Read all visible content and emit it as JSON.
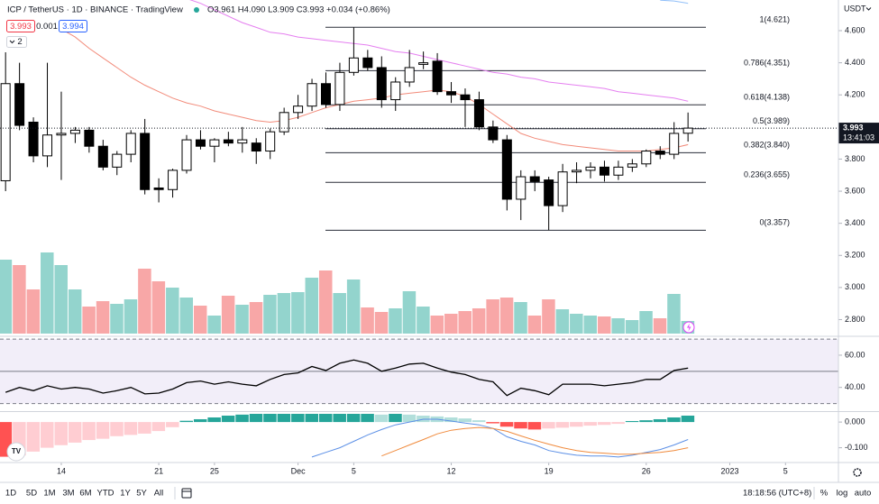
{
  "header": {
    "symbol": "ICP / TetherUS · 1D · BINANCE · TradingView",
    "ohlc": "O3.961 H4.090 L3.909 C3.993 +0.034 (+0.86%)",
    "bid": "3.993",
    "spread": "0.001",
    "ask": "3.994",
    "indicators_count": "2",
    "currency": "USDT"
  },
  "toolbar": {
    "ranges": [
      "1D",
      "5D",
      "1M",
      "3M",
      "6M",
      "YTD",
      "1Y",
      "5Y",
      "All"
    ],
    "clock": "18:18:56 (UTC+8)",
    "percent": "%",
    "log": "log",
    "auto": "auto"
  },
  "chart_data": [
    {
      "type": "candlestick",
      "up_color": "#ffffff",
      "down_color": "#000000",
      "open": [
        3.665,
        4.27,
        4.03,
        3.82,
        3.95,
        3.96,
        3.98,
        3.88,
        3.75,
        3.83,
        3.96,
        3.62,
        3.61,
        3.73,
        3.92,
        3.88,
        3.92,
        3.9,
        3.9,
        3.85,
        3.97,
        4.09,
        4.13,
        4.27,
        4.14,
        4.34,
        4.43,
        4.37,
        4.17,
        4.28,
        4.39,
        4.41,
        4.22,
        4.2,
        4.17,
        4.0,
        3.92,
        3.55,
        3.69,
        3.67,
        3.51,
        3.72,
        3.73,
        3.75,
        3.7,
        3.75,
        3.77,
        3.85,
        3.83,
        3.961
      ],
      "high": [
        4.465,
        4.4,
        4.06,
        4.4,
        4.22,
        4.0,
        4.0,
        3.92,
        3.85,
        3.98,
        4.05,
        3.68,
        3.74,
        3.95,
        3.98,
        3.93,
        3.97,
        4.0,
        3.93,
        3.99,
        4.12,
        4.2,
        4.3,
        4.34,
        4.4,
        4.62,
        4.48,
        4.44,
        4.31,
        4.48,
        4.47,
        4.46,
        4.28,
        4.24,
        4.22,
        4.04,
        3.95,
        3.73,
        3.73,
        3.69,
        3.77,
        3.78,
        3.78,
        3.79,
        3.79,
        3.8,
        3.86,
        3.88,
        4.03,
        4.09
      ],
      "low": [
        3.6,
        3.98,
        3.78,
        3.75,
        3.67,
        3.9,
        3.84,
        3.73,
        3.7,
        3.78,
        3.58,
        3.53,
        3.56,
        3.71,
        3.86,
        3.78,
        3.88,
        3.84,
        3.77,
        3.8,
        3.95,
        4.05,
        4.1,
        4.12,
        4.1,
        4.32,
        4.35,
        4.12,
        4.1,
        4.25,
        4.36,
        4.2,
        4.15,
        4.0,
        3.98,
        3.9,
        3.48,
        3.42,
        3.6,
        3.357,
        3.47,
        3.65,
        3.68,
        3.66,
        3.67,
        3.72,
        3.75,
        3.8,
        3.8,
        3.909
      ],
      "close": [
        4.27,
        4.01,
        3.82,
        3.95,
        3.96,
        3.98,
        3.88,
        3.75,
        3.83,
        3.96,
        3.61,
        3.61,
        3.73,
        3.92,
        3.88,
        3.92,
        3.9,
        3.92,
        3.85,
        3.97,
        4.09,
        4.13,
        4.27,
        4.14,
        4.34,
        4.43,
        4.37,
        4.17,
        4.28,
        4.37,
        4.4,
        4.22,
        4.2,
        4.17,
        4.0,
        3.92,
        3.55,
        3.69,
        3.66,
        3.51,
        3.72,
        3.73,
        3.75,
        3.7,
        3.75,
        3.77,
        3.85,
        3.83,
        3.96,
        3.993
      ],
      "lines": [
        {
          "color": "#e57ff0",
          "values": [
            null,
            null,
            null,
            null,
            null,
            null,
            null,
            null,
            null,
            null,
            null,
            null,
            null,
            4.8,
            4.77,
            4.73,
            4.69,
            4.65,
            4.62,
            4.59,
            4.58,
            4.56,
            4.55,
            4.54,
            4.53,
            4.52,
            4.51,
            4.49,
            4.47,
            4.46,
            4.44,
            4.42,
            4.4,
            4.38,
            4.36,
            4.34,
            4.33,
            4.31,
            4.3,
            4.28,
            4.27,
            4.26,
            4.25,
            4.24,
            4.22,
            4.21,
            4.2,
            4.19,
            4.18,
            4.16
          ]
        },
        {
          "color": "#f28b7a",
          "values": [
            null,
            null,
            null,
            null,
            4.61,
            4.56,
            4.49,
            4.43,
            4.37,
            4.31,
            4.26,
            4.22,
            4.18,
            4.15,
            4.13,
            4.1,
            4.08,
            4.06,
            4.04,
            4.03,
            4.04,
            4.06,
            4.09,
            4.12,
            4.14,
            4.16,
            4.17,
            4.18,
            4.2,
            4.21,
            4.22,
            4.23,
            4.22,
            4.19,
            4.14,
            4.08,
            4.02,
            3.96,
            3.93,
            3.91,
            3.89,
            3.88,
            3.87,
            3.86,
            3.85,
            3.85,
            3.85,
            3.86,
            3.87,
            3.89
          ]
        },
        {
          "color": "#90bff9",
          "values": [
            null,
            null,
            null,
            null,
            null,
            null,
            null,
            null,
            null,
            null,
            null,
            null,
            null,
            null,
            null,
            null,
            null,
            null,
            null,
            null,
            null,
            null,
            null,
            null,
            null,
            null,
            null,
            null,
            null,
            null,
            null,
            null,
            null,
            null,
            null,
            null,
            null,
            null,
            null,
            null,
            null,
            null,
            null,
            null,
            null,
            null,
            null,
            4.79,
            4.785,
            4.77
          ]
        }
      ],
      "fib": [
        {
          "value": 4.621,
          "label": "1(4.621)"
        },
        {
          "value": 4.351,
          "label": "0.786(4.351)"
        },
        {
          "value": 4.138,
          "label": "0.618(4.138)"
        },
        {
          "value": 3.989,
          "label": "0.5(3.989)"
        },
        {
          "value": 3.84,
          "label": "0.382(3.840)"
        },
        {
          "value": 3.655,
          "label": "0.236(3.655)"
        },
        {
          "value": 3.357,
          "label": "0(3.357)"
        }
      ],
      "last_price": 3.993,
      "countdown": "13:41:03",
      "xlim": [
        -0.4,
        59.8
      ],
      "xticks": [
        {
          "value": 4,
          "label": "14"
        },
        {
          "value": 11,
          "label": "21"
        },
        {
          "value": 15,
          "label": "25"
        },
        {
          "value": 21,
          "label": "Dec"
        },
        {
          "value": 25,
          "label": "5"
        },
        {
          "value": 32,
          "label": "12"
        },
        {
          "value": 39,
          "label": "19"
        },
        {
          "value": 46,
          "label": "26"
        },
        {
          "value": 52,
          "label": "2023"
        },
        {
          "value": 56,
          "label": "5"
        }
      ],
      "ylim": [
        2.696,
        4.791
      ],
      "yticks": [
        {
          "value": 2.8,
          "label": "2.800"
        },
        {
          "value": 3.0,
          "label": "3.000"
        },
        {
          "value": 3.2,
          "label": "3.200"
        },
        {
          "value": 3.4,
          "label": "3.400"
        },
        {
          "value": 3.6,
          "label": "3.600"
        },
        {
          "value": 3.8,
          "label": "3.800"
        },
        {
          "value": 4.2,
          "label": "4.200"
        },
        {
          "value": 4.4,
          "label": "4.400"
        },
        {
          "value": 4.6,
          "label": "4.600"
        }
      ]
    },
    {
      "type": "bar",
      "up_color": "#93d4cd",
      "down_color": "#f8a7a7",
      "ylim": [
        0,
        100
      ],
      "values": [
        82,
        76,
        49,
        90,
        76,
        49,
        30,
        36,
        33,
        38,
        72,
        58,
        51,
        40,
        31,
        20,
        42,
        32,
        35,
        43,
        45,
        46,
        62,
        70,
        45,
        60,
        29,
        24,
        28,
        47,
        30,
        20,
        22,
        25,
        28,
        38,
        40,
        35,
        20,
        38,
        27,
        22,
        20,
        19,
        17,
        15,
        25,
        17,
        44,
        14
      ]
    },
    {
      "type": "line",
      "color": "#000000",
      "band_fill": "rgba(126,87,194,0.1)",
      "bands": [
        70,
        50,
        30
      ],
      "values": [
        37,
        40,
        38,
        41,
        39,
        40,
        39,
        36.5,
        38,
        40,
        36,
        36.5,
        39,
        43,
        44,
        42,
        43.5,
        42,
        41,
        45,
        48,
        49,
        53,
        50.5,
        55,
        57,
        55,
        50,
        52,
        54.5,
        55,
        52,
        49.5,
        48,
        45,
        43.5,
        35,
        39.5,
        38,
        35.5,
        42,
        42,
        42,
        41,
        42,
        43,
        45,
        45,
        50.5,
        52
      ],
      "ylim": [
        25.3,
        70.6
      ],
      "yticks": [
        {
          "value": 40,
          "label": "40.00"
        },
        {
          "value": 60,
          "label": "60.00"
        }
      ]
    },
    {
      "type": "macd",
      "colors": {
        "up_strong": "#26a69a",
        "up_weak": "#b2dfdb",
        "down_strong": "#ff5252",
        "down_weak": "#ffcdd2"
      },
      "histogram": [
        -0.135,
        -0.13,
        -0.115,
        -0.1,
        -0.09,
        -0.08,
        -0.07,
        -0.065,
        -0.055,
        -0.05,
        -0.045,
        -0.035,
        -0.02,
        0.005,
        0.011,
        0.018,
        0.025,
        0.029,
        0.032,
        0.032,
        0.032,
        0.032,
        0.032,
        0.032,
        0.032,
        0.032,
        0.032,
        0.029,
        0.032,
        0.029,
        0.025,
        0.022,
        0.018,
        0.014,
        0.007,
        -0.005,
        -0.018,
        -0.025,
        -0.029,
        -0.025,
        -0.022,
        -0.018,
        -0.014,
        -0.011,
        -0.007,
        0.004,
        0.007,
        0.011,
        0.018,
        0.025
      ],
      "series": [
        {
          "color": "#5b8fe6",
          "values": [
            null,
            null,
            null,
            null,
            null,
            null,
            null,
            null,
            null,
            null,
            null,
            null,
            null,
            null,
            null,
            null,
            null,
            null,
            null,
            null,
            null,
            null,
            -0.136,
            -0.118,
            -0.1,
            -0.075,
            -0.05,
            -0.029,
            -0.011,
            0,
            0.011,
            0.011,
            0.004,
            -0.004,
            -0.011,
            -0.025,
            -0.057,
            -0.075,
            -0.089,
            -0.111,
            -0.121,
            -0.129,
            -0.132,
            -0.132,
            -0.136,
            -0.129,
            -0.118,
            -0.107,
            -0.089,
            -0.068
          ]
        },
        {
          "color": "#f08a3c",
          "values": [
            null,
            null,
            null,
            null,
            null,
            null,
            null,
            null,
            null,
            null,
            null,
            null,
            null,
            null,
            null,
            null,
            null,
            null,
            null,
            null,
            null,
            null,
            null,
            null,
            null,
            null,
            null,
            -0.132,
            -0.111,
            -0.089,
            -0.068,
            -0.046,
            -0.032,
            -0.025,
            -0.021,
            -0.025,
            -0.036,
            -0.054,
            -0.071,
            -0.086,
            -0.1,
            -0.111,
            -0.118,
            -0.121,
            -0.125,
            -0.125,
            -0.121,
            -0.118,
            -0.111,
            -0.1
          ]
        }
      ],
      "ylim": [
        -0.154,
        0.039
      ],
      "yticks": [
        {
          "value": 0,
          "label": "0.000"
        },
        {
          "value": -0.1,
          "label": "-0.100"
        }
      ]
    }
  ]
}
